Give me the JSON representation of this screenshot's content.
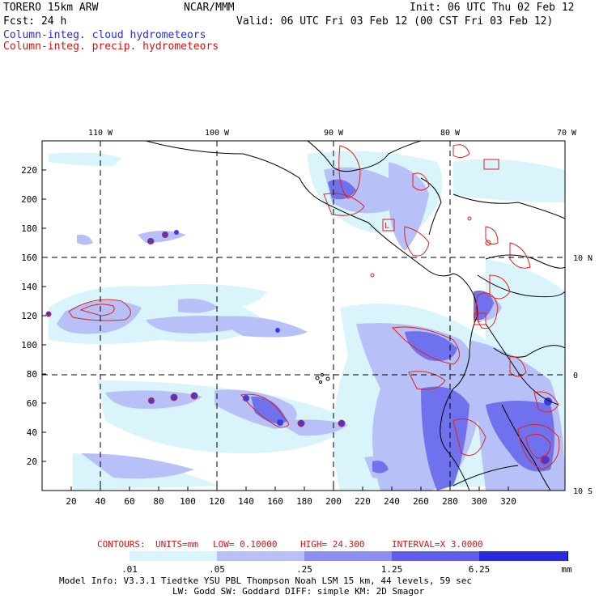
{
  "header": {
    "model": "TORERO  15km ARW",
    "org": "NCAR/MMM",
    "init": "Init: 06 UTC Thu 02 Feb 12",
    "fcst": "Fcst:   24 h",
    "valid": "Valid: 06 UTC Fri 03 Feb 12 (00 CST Fri 03 Feb 12)",
    "legend_cloud": "Column-integ. cloud hydrometeors",
    "legend_precip": "Column-integ. precip. hydrometeors"
  },
  "map": {
    "top_lon_labels": [
      "110 W",
      "100 W",
      "90 W",
      "80 W",
      "70 W"
    ],
    "right_lat_labels": [
      "10 N",
      "0",
      "10 S"
    ],
    "x_ticks": [
      "20",
      "40",
      "60",
      "80",
      "100",
      "120",
      "140",
      "160",
      "180",
      "200",
      "220",
      "240",
      "260",
      "280",
      "300",
      "320"
    ],
    "y_ticks": [
      "20",
      "40",
      "60",
      "80",
      "100",
      "120",
      "140",
      "160",
      "180",
      "200",
      "220"
    ],
    "boxed_labels": [
      "L",
      "L",
      "L"
    ]
  },
  "contour_info": {
    "contours": "CONTOURS:",
    "units": "UNITS=mm",
    "low": "LOW= 0.10000",
    "high": "HIGH=  24.300",
    "interval": "INTERVAL=X  3.0000"
  },
  "colorbar": {
    "labels": [
      ".01",
      ".05",
      ".25",
      "1.25",
      "6.25"
    ],
    "unit": "mm",
    "colors": [
      "#ffffff",
      "#d9f4fb",
      "#b7c1f7",
      "#8c8ef0",
      "#5e5ee8",
      "#3b3be0",
      "#1e1edb"
    ]
  },
  "footer": {
    "line1": "Model Info: V3.3.1   Tiedtke YSU PBL  Thompson    Noah LSM  15 km,   44 levels,    59 sec",
    "line2": "LW: Godd SW: Goddard DIFF: simple KM: 2D Smagor"
  }
}
